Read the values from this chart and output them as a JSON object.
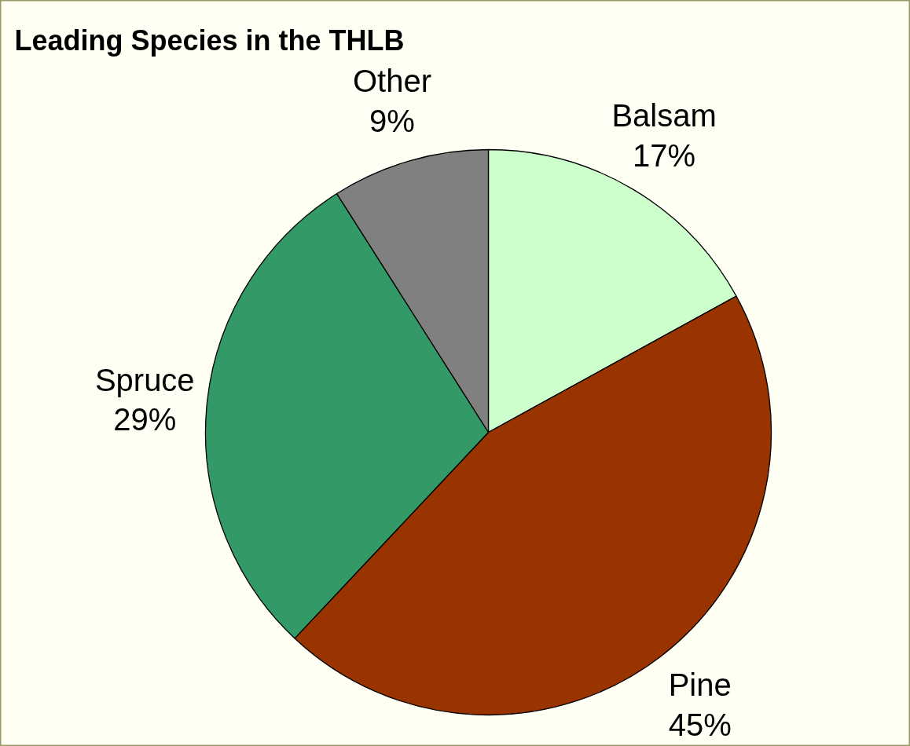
{
  "chart_data": {
    "type": "pie",
    "title": "Leading Species in the THLB",
    "categories": [
      "Balsam",
      "Pine",
      "Spruce",
      "Other"
    ],
    "values": [
      17,
      45,
      29,
      9
    ],
    "value_labels": [
      "17%",
      "45%",
      "29%",
      "9%"
    ],
    "colors": [
      "#ccffcc",
      "#993300",
      "#339966",
      "#808080"
    ]
  }
}
